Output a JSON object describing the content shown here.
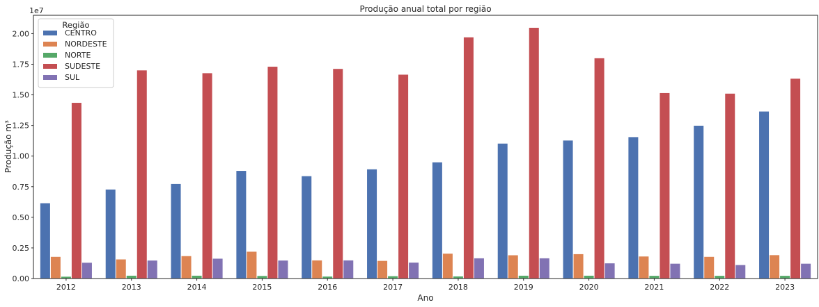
{
  "chart_data": {
    "type": "bar",
    "title": "Produção anual total por região",
    "xlabel": "Ano",
    "ylabel": "Produção m³",
    "offset_text": "1e7",
    "scale": 10000000,
    "ylim": [
      0,
      21500000
    ],
    "yticks": [
      0,
      2500000,
      5000000,
      7500000,
      10000000,
      12500000,
      15000000,
      17500000,
      20000000
    ],
    "ytick_labels": [
      "0.00",
      "0.25",
      "0.50",
      "0.75",
      "1.00",
      "1.25",
      "1.50",
      "1.75",
      "2.00"
    ],
    "grid": false,
    "legend": {
      "title": "Região",
      "position": "top-left"
    },
    "categories": [
      "2012",
      "2013",
      "2014",
      "2015",
      "2016",
      "2017",
      "2018",
      "2019",
      "2020",
      "2021",
      "2022",
      "2023"
    ],
    "series": [
      {
        "name": "CENTRO",
        "color": "#4c72b0",
        "values": [
          6150000,
          7270000,
          7720000,
          8790000,
          8360000,
          8920000,
          9490000,
          11020000,
          11270000,
          11550000,
          12480000,
          13640000
        ]
      },
      {
        "name": "NORDESTE",
        "color": "#dd8452",
        "values": [
          1770000,
          1560000,
          1830000,
          2190000,
          1480000,
          1440000,
          2030000,
          1900000,
          1990000,
          1800000,
          1770000,
          1910000
        ]
      },
      {
        "name": "NORTE",
        "color": "#55a868",
        "values": [
          150000,
          230000,
          230000,
          210000,
          160000,
          190000,
          170000,
          230000,
          230000,
          220000,
          220000,
          220000
        ]
      },
      {
        "name": "SUDESTE",
        "color": "#c44e52",
        "values": [
          14350000,
          17000000,
          16770000,
          17300000,
          17120000,
          16650000,
          19700000,
          20480000,
          17990000,
          15150000,
          15100000,
          16320000
        ]
      },
      {
        "name": "SUL",
        "color": "#8172b3",
        "values": [
          1290000,
          1470000,
          1620000,
          1470000,
          1480000,
          1300000,
          1650000,
          1650000,
          1240000,
          1210000,
          1100000,
          1210000
        ]
      }
    ]
  }
}
